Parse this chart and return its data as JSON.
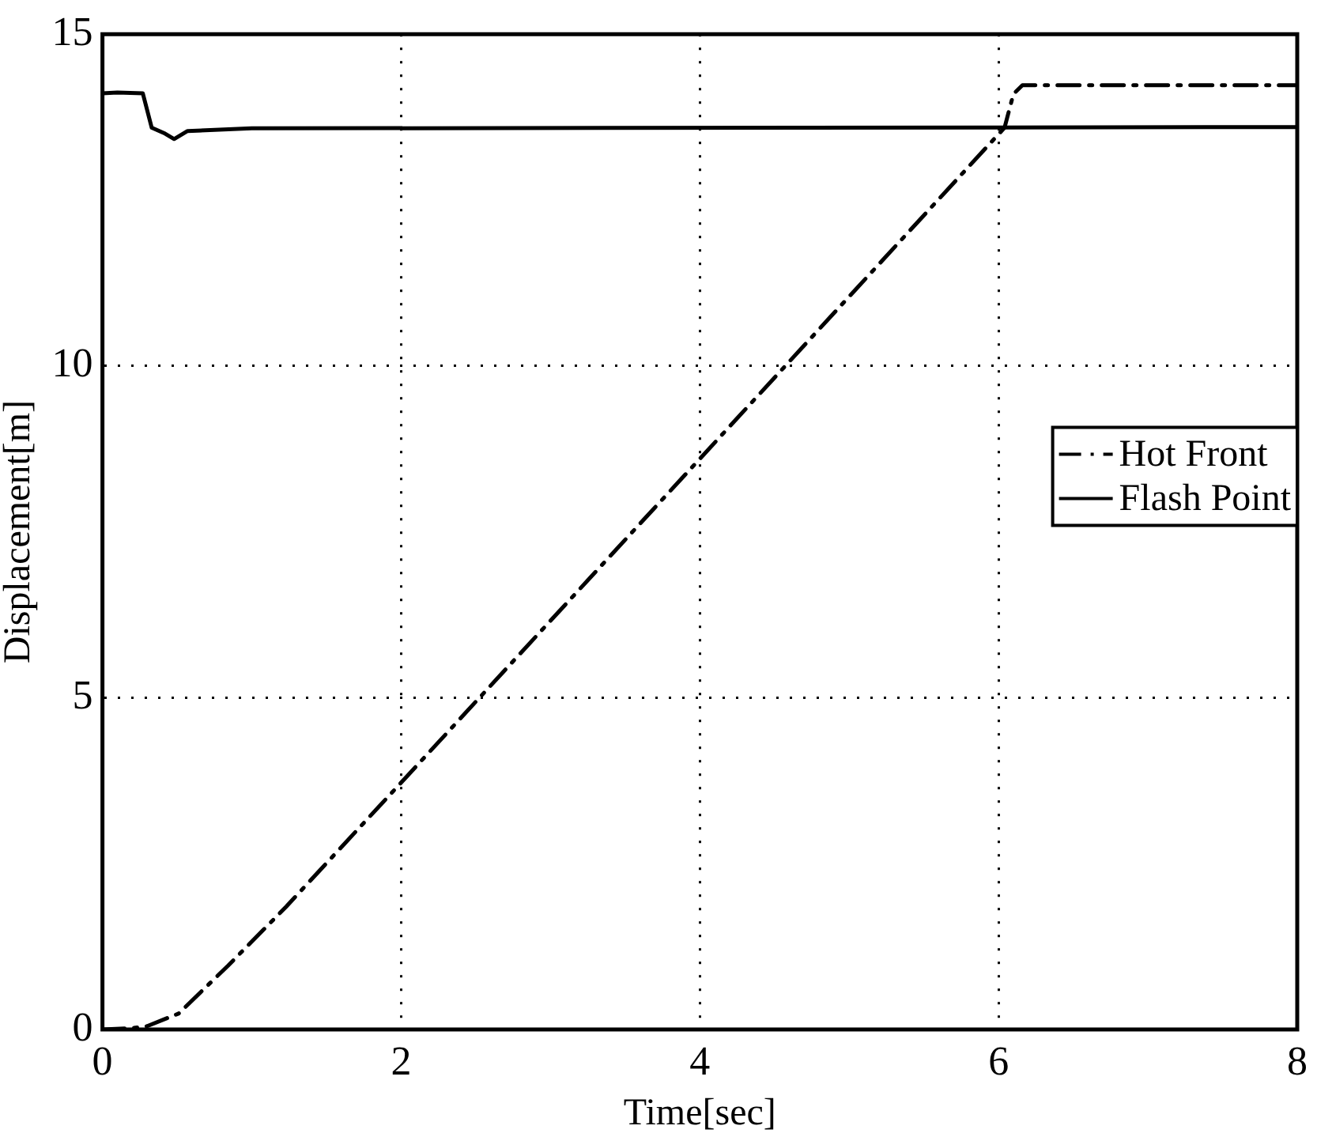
{
  "chart_data": {
    "type": "line",
    "xlabel": "Time[sec]",
    "ylabel": "Displacement[m]",
    "xlim": [
      0,
      8
    ],
    "xticks": [
      0,
      2,
      4,
      6,
      8
    ],
    "ylim": [
      0,
      15
    ],
    "yticks": [
      0,
      5,
      10,
      15
    ],
    "grid": true,
    "legend": "right",
    "marker": "none",
    "series": [
      {
        "name": "Hot Front",
        "color": "#000000",
        "line_style": "dashdot",
        "x": [
          0,
          0.2,
          0.3,
          0.51,
          0.84,
          1.23,
          2,
          4,
          6.04,
          6.1,
          6.16,
          8
        ],
        "values": [
          0,
          0.02,
          0.05,
          0.24,
          0.96,
          1.85,
          3.72,
          8.6,
          13.59,
          14.1,
          14.23,
          14.23
        ]
      },
      {
        "name": "Flash Point",
        "color": "#000000",
        "line_style": "solid",
        "x": [
          0,
          0.1,
          0.27,
          0.33,
          0.42,
          0.48,
          0.57,
          1,
          8
        ],
        "values": [
          14.11,
          14.12,
          14.11,
          13.59,
          13.5,
          13.42,
          13.54,
          13.58,
          13.6
        ]
      }
    ]
  }
}
